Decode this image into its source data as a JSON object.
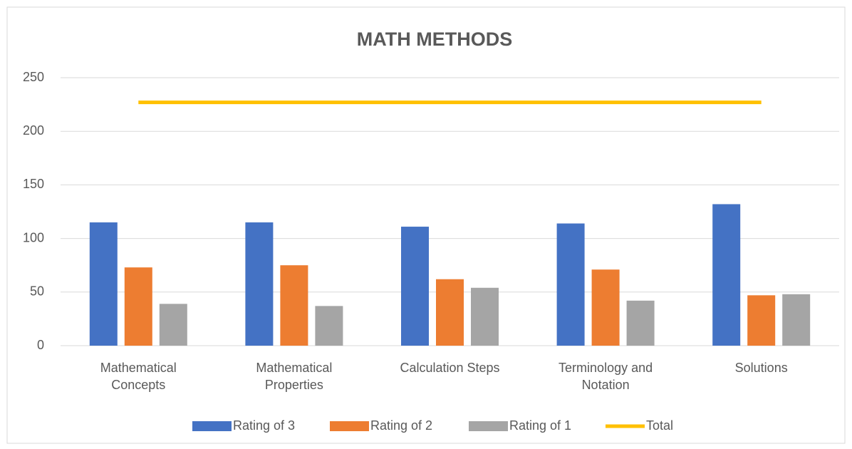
{
  "chart_data": {
    "type": "bar",
    "title": "MATH METHODS",
    "categories": [
      "Mathematical Concepts",
      "Mathematical Properties",
      "Calculation Steps",
      "Terminology and Notation",
      "Solutions"
    ],
    "series": [
      {
        "name": "Rating of 3",
        "color": "#4472c4",
        "values": [
          115,
          115,
          111,
          114,
          132
        ]
      },
      {
        "name": "Rating of 2",
        "color": "#ed7d31",
        "values": [
          73,
          75,
          62,
          71,
          47
        ]
      },
      {
        "name": "Rating of 1",
        "color": "#a5a5a5",
        "values": [
          39,
          37,
          54,
          42,
          48
        ]
      },
      {
        "name": "Total",
        "type": "line",
        "color": "#ffc000",
        "values": [
          227,
          227,
          227,
          227,
          227
        ]
      }
    ],
    "ylim": [
      0,
      250
    ],
    "yticks": [
      0,
      50,
      100,
      150,
      200,
      250
    ],
    "grid": true,
    "legend": "bottom"
  }
}
